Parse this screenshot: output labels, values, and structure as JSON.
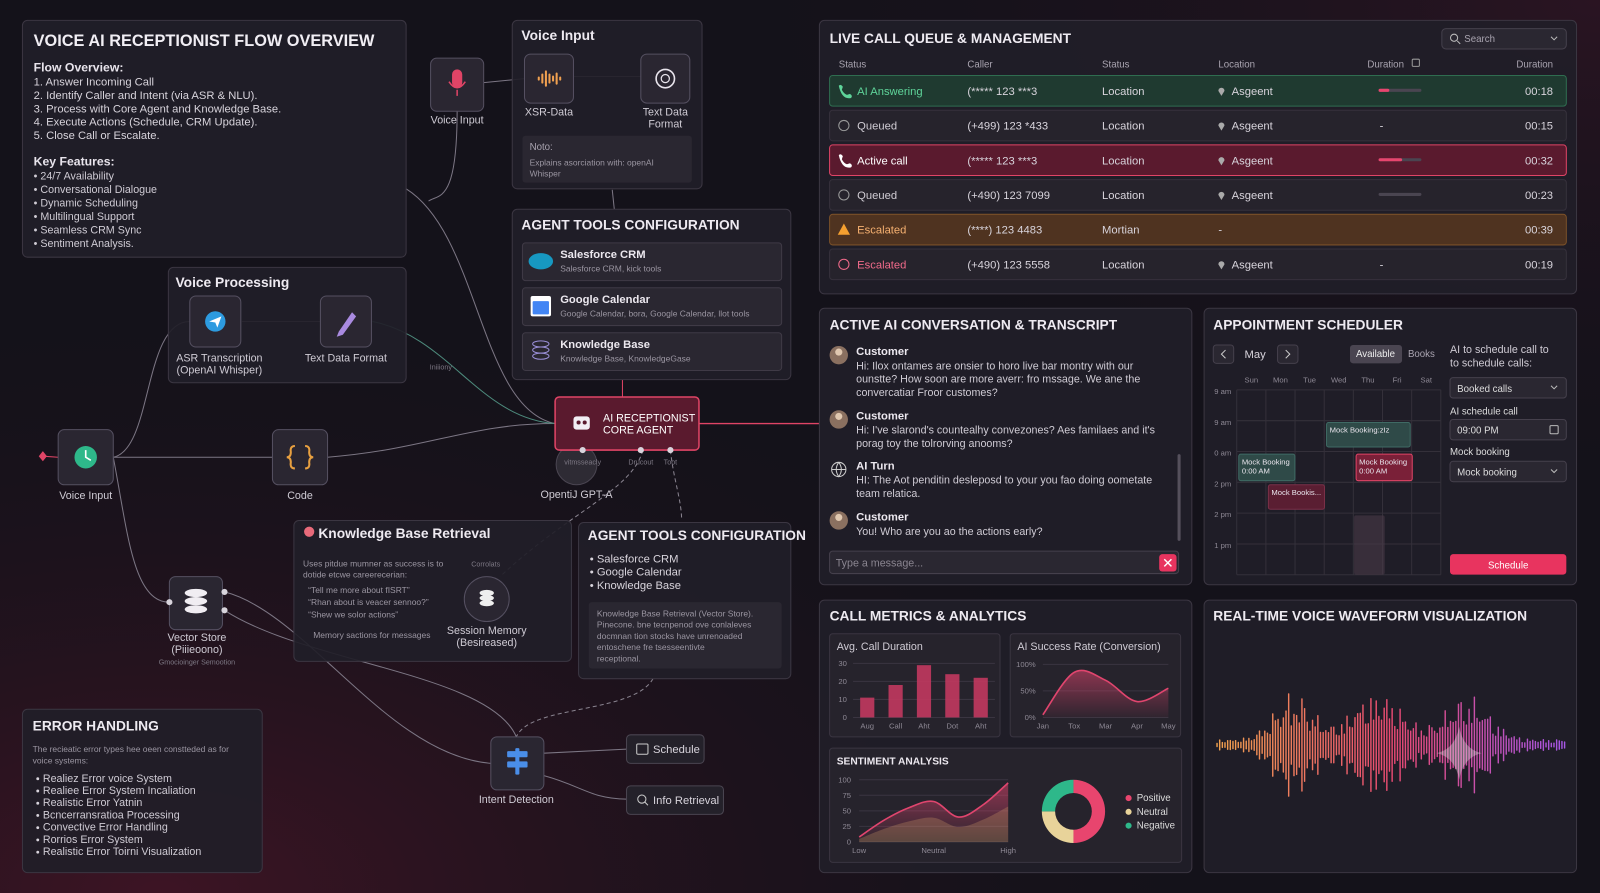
{
  "flow_overview": {
    "title": "VOICE AI RECEPTIONIST FLOW OVERVIEW",
    "overview_heading": "Flow Overview:",
    "steps": [
      "1. Answer Incoming Call",
      "2. Identify Caller and Intent (via ASR & NLU).",
      "3. Process with Core Agent and Knowledge Base.",
      "4. Execute Actions (Schedule, CRM Update).",
      "5. Close Call or Escalate."
    ],
    "features_heading": "Key Features:",
    "features": [
      "• 24/7 Availability",
      "• Conversational Dialogue",
      "• Dynamic Scheduling",
      "• Multilingual Support",
      "• Seamless CRM Sync",
      "• Sentiment Analysis."
    ]
  },
  "voice_input_node": "Voice Input",
  "voice_input_panel": {
    "title": "Voice Input",
    "nodes": [
      [
        "XSR-Data"
      ],
      [
        "Text Data",
        "Format"
      ]
    ],
    "note_heading": "Noto:",
    "note": [
      "Explains asorciation with: openAI",
      "Whisper"
    ]
  },
  "voice_processing": {
    "title": "Voice Processing",
    "nodes": [
      [
        "ASR Transcription",
        "(OpenAI Whisper)"
      ],
      [
        "Text Data Format"
      ]
    ],
    "link_label": "Iniiiony"
  },
  "agent_tools": {
    "title": "AGENT TOOLS CONFIGURATION",
    "items": [
      {
        "name": "Salesforce CRM",
        "desc": "Salesforce CRM, kick tools"
      },
      {
        "name": "Google Calendar",
        "desc": "Google Calendar, bora, Google Calendar, llot tools"
      },
      {
        "name": "Knowledge Base",
        "desc": "Knowledge Base, KnowledgeGase"
      }
    ]
  },
  "core_agent": {
    "title": [
      "AI RECEPTIONIST",
      "CORE AGENT"
    ],
    "ports": [
      "vitmsseacly",
      "Drucout",
      "Toot"
    ],
    "model": "OpentiJ GPT-A"
  },
  "voice_input_left": "Voice Input",
  "code_node": "Code",
  "knowledge_retrieval": {
    "title": "Knowledge Base Retrieval",
    "intro": [
      "Uses pitdue mumner as success is to",
      "dotide etcwe careerecerian:"
    ],
    "examples": [
      "“Tell me more about fISRT”",
      "“Rhan about is veacer sennoo?”",
      "“Shew we solor actions”"
    ],
    "footer": "Memory sactions for messages",
    "link_label": "Corrolats",
    "memory": [
      "Session Memory",
      "(Besireased)"
    ]
  },
  "agent_tools_2": {
    "title": "AGENT TOOLS CONFIGURATION",
    "items": [
      "• Salesforce CRM",
      "• Google Calendar",
      "• Knowledge Base"
    ],
    "note": [
      "Knowledge Base Retrieval (Vector Store).",
      "Pinecone. bne tecnpenod ove conlaleves",
      "docmnan tion stocks have unrenoaded",
      "entoschene fre tsesseentivte",
      "receptional."
    ]
  },
  "vector_store": {
    "label": [
      "Vector Store",
      "(Piiieoono)"
    ],
    "caption": "Gmocioinger Semootion"
  },
  "error_handling": {
    "title": "ERROR HANDLING",
    "intro": [
      "The recieatic error types hee oeen constteded as for",
      "voice systems:"
    ],
    "items": [
      "Realiez Error voice System",
      "Realiee Error System Incaliation",
      "Realistic Error Yatnin",
      "Bcncerransratioa Processing",
      "Convective Error Handling",
      "Rorrios Error System",
      "Realistic Error Toirni Visualization"
    ]
  },
  "intent_detection": "Intent Detection",
  "actions": [
    "Schedule",
    "Info Retrieval"
  ],
  "call_queue": {
    "title": "LIVE CALL QUEUE & MANAGEMENT",
    "search": "Search",
    "columns": [
      "Status",
      "Caller",
      "Status",
      "Location",
      "Duration",
      "Duration"
    ],
    "rows": [
      {
        "status": "AI Answering",
        "caller": "(***** 123 ***3",
        "state": "Location",
        "location": "Asgeent",
        "progress": 25,
        "duration": "00:18",
        "tone": "green"
      },
      {
        "status": "Queued",
        "caller": "(+499) 123 *433",
        "state": "Location",
        "location": "Asgeent",
        "progress": "-",
        "duration": "00:15",
        "tone": "plain"
      },
      {
        "status": "Active call",
        "caller": "(***** 123 ***3",
        "state": "Location",
        "location": "Asgeent",
        "progress": 55,
        "duration": "00:32",
        "tone": "red"
      },
      {
        "status": "Queued",
        "caller": "(+490) 123 7099",
        "state": "Location",
        "location": "Asgeent",
        "progress": 0,
        "duration": "00:23",
        "tone": "plain"
      },
      {
        "status": "Escalated",
        "caller": "(****) 123 4483",
        "state": "Mortian",
        "location": "-",
        "duration": "00:39",
        "tone": "orange"
      },
      {
        "status": "Escalated",
        "caller": "(+490) 123 5558",
        "state": "Location",
        "location": "Asgeent",
        "progress": "-",
        "duration": "00:19",
        "tone": "pink"
      }
    ]
  },
  "conversation": {
    "title": "ACTIVE AI CONVERSATION & TRANSCRIPT",
    "messages": [
      {
        "speaker": "Customer",
        "lines": [
          "Hi: Ilox ontames are onsier to horo live bar montry with our",
          "ounstte? How soon are more averr: fro mssage. We ane the",
          "convercatiar Froor customes?"
        ]
      },
      {
        "speaker": "Customer",
        "lines": [
          "Hi: I've slarond's countealhy convezones? Aes familaes and it's",
          "porag toy the tolrorving anooms?"
        ]
      },
      {
        "speaker": "AI Turn",
        "lines": [
          "HI: The Aot penditin desleposd to your you fao doing oometate",
          "team relatica."
        ]
      },
      {
        "speaker": "Customer",
        "lines": [
          "You! Who are you ao the actions early?"
        ]
      }
    ],
    "placeholder": "Type a message..."
  },
  "scheduler": {
    "title": "APPOINTMENT SCHEDULER",
    "month": "May",
    "tabs": [
      "Available",
      "Books"
    ],
    "days": [
      "Sun",
      "Mon",
      "Tue",
      "Wed",
      "Thu",
      "Fri",
      "Sat"
    ],
    "times": [
      "9 am",
      "9 am",
      "0 am",
      "2 pm",
      "2 pm",
      "1 pm"
    ],
    "events": [
      [
        "Mock Booking:zIz"
      ],
      [
        "Mock Booking",
        "0:00 AM"
      ],
      [
        "Mock Booking",
        "0:00 AM"
      ],
      [
        "Mock Bookis..."
      ]
    ],
    "prompt": [
      "AI to schedule call to",
      "to schedule calls:"
    ],
    "select_calls": "Booked calls",
    "time_label": "AI schedule call",
    "time": "09:00 PM",
    "booking_label": "Mock booking",
    "select_booking": "Mock booking",
    "button": "Schedule"
  },
  "call_metrics": {
    "title": "CALL METRICS & ANALYTICS"
  },
  "chart_data": [
    {
      "type": "bar",
      "title": "Avg. Call Duration",
      "categories": [
        "Aug",
        "Call",
        "Aht",
        "Dot",
        "Aht"
      ],
      "values": [
        11,
        18,
        29,
        24,
        22
      ],
      "color": "#c2385f",
      "ylim": [
        0,
        30
      ],
      "yticks": [
        0,
        10,
        20,
        30
      ]
    },
    {
      "type": "line",
      "title": "AI Success Rate (Conversion)",
      "categories": [
        "Jan",
        "Tox",
        "Mar",
        "Apr",
        "May"
      ],
      "values": [
        5,
        85,
        70,
        30,
        55
      ],
      "color": "#e0456e",
      "ylim": [
        0,
        100
      ],
      "yticks": [
        {
          "value": 0,
          "label": "0%"
        },
        {
          "value": 50,
          "label": "50%"
        },
        {
          "value": 100,
          "label": "100%"
        }
      ]
    },
    {
      "type": "area",
      "title": "SENTIMENT ANALYSIS",
      "categories": [
        "Low",
        null,
        null,
        "Neutral",
        null,
        null,
        "High"
      ],
      "values": [
        8,
        35,
        55,
        65,
        40,
        60,
        95
      ],
      "color": "#e0456e",
      "ylim": [
        0,
        100
      ],
      "yticks": [
        0,
        25,
        50,
        75,
        100
      ]
    },
    {
      "type": "pie",
      "categories": [
        "Positive",
        "Neutral",
        "Negative"
      ],
      "values": [
        50,
        25,
        25
      ],
      "colors": [
        "#e8456e",
        "#e8d39a",
        "#2eb88a"
      ]
    }
  ],
  "waveform": {
    "title": "REAL-TIME VOICE WAVEFORM VISUALIZATION"
  }
}
